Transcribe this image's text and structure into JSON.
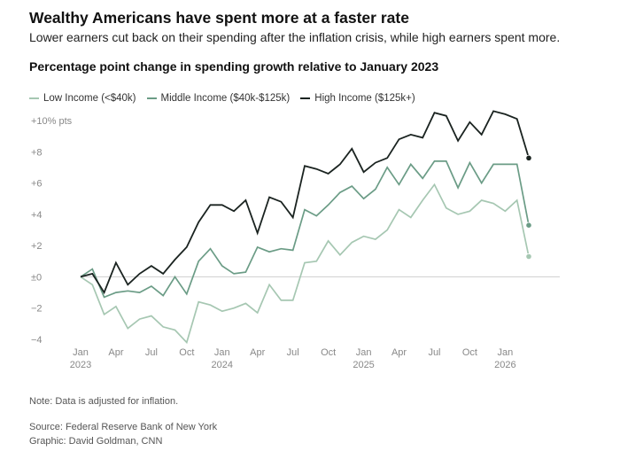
{
  "header": {
    "title": "Wealthy Americans have spent more at a faster rate",
    "subtitle": "Lower earners cut back on their spending after the inflation crisis, while high earners spent more."
  },
  "footer": {
    "note": "Note: Data is adjusted for inflation.",
    "source": "Source: Federal Reserve Bank of New York",
    "graphic": "Graphic: David Goldman, CNN"
  },
  "chart_data": {
    "type": "line",
    "title": "Percentage point change in spending growth relative to January 2023",
    "xlabel": "",
    "ylabel": "",
    "ylim": [
      -4,
      10
    ],
    "grid": false,
    "legend_placement": "top-left",
    "y_ticks": [
      {
        "value": 10,
        "label": "+10% pts"
      },
      {
        "value": 8,
        "label": "+8"
      },
      {
        "value": 6,
        "label": "+6"
      },
      {
        "value": 4,
        "label": "+4"
      },
      {
        "value": 2,
        "label": "+2"
      },
      {
        "value": 0,
        "label": "±0"
      },
      {
        "value": -2,
        "label": "−2"
      },
      {
        "value": -4,
        "label": "−4"
      }
    ],
    "x_ticks": [
      {
        "index": 0,
        "label": "Jan",
        "year": "2023"
      },
      {
        "index": 3,
        "label": "Apr",
        "year": ""
      },
      {
        "index": 6,
        "label": "Jul",
        "year": ""
      },
      {
        "index": 9,
        "label": "Oct",
        "year": ""
      },
      {
        "index": 12,
        "label": "Jan",
        "year": "2024"
      },
      {
        "index": 15,
        "label": "Apr",
        "year": ""
      },
      {
        "index": 18,
        "label": "Jul",
        "year": ""
      },
      {
        "index": 21,
        "label": "Oct",
        "year": ""
      },
      {
        "index": 24,
        "label": "Jan",
        "year": "2025"
      },
      {
        "index": 27,
        "label": "Apr",
        "year": ""
      },
      {
        "index": 30,
        "label": "Jul",
        "year": ""
      },
      {
        "index": 33,
        "label": "Oct",
        "year": ""
      },
      {
        "index": 36,
        "label": "Jan",
        "year": "2026"
      }
    ],
    "x": [
      "2023-01",
      "2023-02",
      "2023-03",
      "2023-04",
      "2023-05",
      "2023-06",
      "2023-07",
      "2023-08",
      "2023-09",
      "2023-10",
      "2023-11",
      "2023-12",
      "2024-01",
      "2024-02",
      "2024-03",
      "2024-04",
      "2024-05",
      "2024-06",
      "2024-07",
      "2024-08",
      "2024-09",
      "2024-10",
      "2024-11",
      "2024-12",
      "2025-01",
      "2025-02",
      "2025-03",
      "2025-04",
      "2025-05",
      "2025-06",
      "2025-07",
      "2025-08",
      "2025-09",
      "2025-10",
      "2025-11",
      "2025-12",
      "2026-01",
      "2026-02",
      "2026-03"
    ],
    "series": [
      {
        "name": "Low Income (<$40k)",
        "color": "#a6c7b2",
        "values": [
          0,
          -0.5,
          -2.4,
          -1.9,
          -3.3,
          -2.7,
          -2.5,
          -3.2,
          -3.4,
          -4.2,
          -1.6,
          -1.8,
          -2.2,
          -2.0,
          -1.7,
          -2.3,
          -0.5,
          -1.5,
          -1.5,
          0.9,
          1.0,
          2.3,
          1.4,
          2.2,
          2.6,
          2.4,
          3.0,
          4.3,
          3.8,
          4.9,
          5.9,
          4.4,
          4.0,
          4.2,
          4.9,
          4.7,
          4.2,
          4.9,
          1.3
        ],
        "end_marker": true
      },
      {
        "name": "Middle Income ($40k-$125k)",
        "color": "#6b9c86",
        "values": [
          0,
          0.5,
          -1.3,
          -1.0,
          -0.9,
          -1.0,
          -0.6,
          -1.2,
          0.0,
          -1.1,
          1.0,
          1.8,
          0.7,
          0.2,
          0.3,
          1.9,
          1.6,
          1.8,
          1.7,
          4.3,
          3.9,
          4.6,
          5.4,
          5.8,
          5.0,
          5.6,
          7.0,
          5.9,
          7.2,
          6.3,
          7.4,
          7.4,
          5.7,
          7.3,
          6.0,
          7.2,
          7.2,
          7.2,
          3.3
        ],
        "end_marker": true
      },
      {
        "name": "High Income ($125k+)",
        "color": "#1a2320",
        "values": [
          0,
          0.2,
          -1.0,
          0.9,
          -0.5,
          0.2,
          0.7,
          0.2,
          1.1,
          1.9,
          3.5,
          4.6,
          4.6,
          4.2,
          4.9,
          2.8,
          5.1,
          4.8,
          3.8,
          7.1,
          6.9,
          6.6,
          7.2,
          8.2,
          6.7,
          7.3,
          7.6,
          8.8,
          9.1,
          8.9,
          10.5,
          10.3,
          8.7,
          9.9,
          9.1,
          10.6,
          10.4,
          10.1,
          7.6
        ],
        "end_marker": true
      }
    ]
  }
}
